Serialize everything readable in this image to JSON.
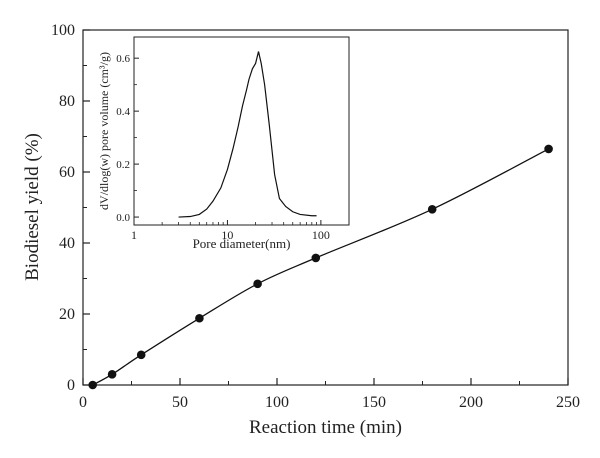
{
  "chart_data": [
    {
      "type": "line",
      "xlabel": "Reaction time (min)",
      "ylabel": "Biodiesel yield (%)",
      "xlim": [
        0,
        250
      ],
      "ylim": [
        0,
        100
      ],
      "xticks": [
        0,
        50,
        100,
        150,
        200,
        250
      ],
      "yticks": [
        0,
        20,
        40,
        60,
        80,
        100
      ],
      "grid": false,
      "series": [
        {
          "markers": "filled-circle",
          "x": [
            5,
            15,
            30,
            60,
            90,
            120,
            180,
            240
          ],
          "y": [
            0,
            3,
            8.5,
            18.8,
            28.5,
            35.8,
            49.5,
            66.5
          ]
        }
      ]
    },
    {
      "type": "line",
      "xlabel": "Pore diameter(nm)",
      "ylabel": "dV/dlog(w) pore volume (cm³/g)",
      "x_scale": "log",
      "xlim": [
        1,
        200
      ],
      "ylim": [
        -0.03,
        0.68
      ],
      "xtick_labels": [
        "1",
        "10",
        "100"
      ],
      "xticks": [
        1,
        10,
        100
      ],
      "yticks": [
        0.0,
        0.2,
        0.4,
        0.6
      ],
      "ytick_labels": [
        "0.0",
        "0.2",
        "0.4",
        "0.6"
      ],
      "grid": false,
      "series": [
        {
          "x": [
            3.0,
            4.0,
            5.0,
            6.0,
            7.0,
            8.5,
            10,
            11.5,
            13,
            14.5,
            16,
            17,
            18.5,
            20,
            21.5,
            23,
            25,
            28,
            32,
            36,
            42,
            50,
            60,
            80,
            90
          ],
          "y": [
            0.0,
            0.002,
            0.01,
            0.03,
            0.06,
            0.11,
            0.18,
            0.26,
            0.34,
            0.42,
            0.48,
            0.52,
            0.56,
            0.58,
            0.625,
            0.58,
            0.5,
            0.35,
            0.16,
            0.07,
            0.04,
            0.02,
            0.01,
            0.005,
            0.005
          ]
        }
      ]
    }
  ]
}
